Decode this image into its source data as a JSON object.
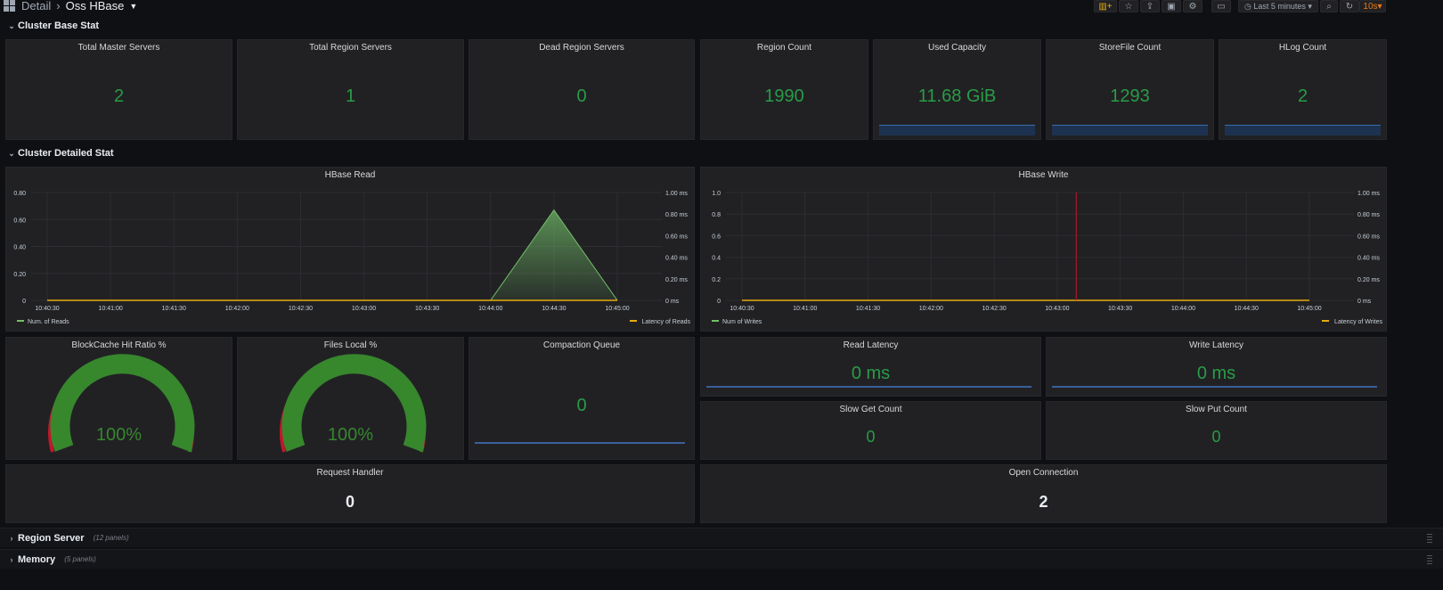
{
  "breadcrumb": {
    "parent": "Detail",
    "current": "Oss HBase"
  },
  "toolbar": {
    "time_range": "Last 5 minutes",
    "refresh": "10s"
  },
  "rows": {
    "base": "Cluster Base Stat",
    "detailed": "Cluster Detailed Stat",
    "region_server": "Region Server",
    "region_server_count": "(12 panels)",
    "memory": "Memory",
    "memory_count": "(5 panels)"
  },
  "stats": {
    "total_master": {
      "title": "Total Master Servers",
      "value": "2"
    },
    "total_region": {
      "title": "Total Region Servers",
      "value": "1"
    },
    "dead_region": {
      "title": "Dead Region Servers",
      "value": "0"
    },
    "region_count": {
      "title": "Region Count",
      "value": "1990"
    },
    "used_capacity": {
      "title": "Used Capacity",
      "value": "11.68 GiB"
    },
    "storefile": {
      "title": "StoreFile Count",
      "value": "1293"
    },
    "hlog": {
      "title": "HLog Count",
      "value": "2"
    },
    "blockcache": {
      "title": "BlockCache Hit Ratio %",
      "value": "100%",
      "level": 1.0
    },
    "files_local": {
      "title": "Files Local %",
      "value": "100%",
      "level": 1.0
    },
    "compaction": {
      "title": "Compaction Queue",
      "value": "0"
    },
    "read_latency": {
      "title": "Read Latency",
      "value": "0 ms"
    },
    "write_latency": {
      "title": "Write Latency",
      "value": "0 ms"
    },
    "slow_get": {
      "title": "Slow Get Count",
      "value": "0"
    },
    "slow_put": {
      "title": "Slow Put Count",
      "value": "0"
    },
    "request_handler": {
      "title": "Request Handler",
      "value": "0"
    },
    "open_connection": {
      "title": "Open Connection",
      "value": "2"
    }
  },
  "colors": {
    "green": "#299c46",
    "gauge_green": "#37872d",
    "gauge_red": "#c4162a",
    "gauge_yellow": "#e0b400",
    "blue": "#3a6ea8",
    "yellow": "#e5ac0e"
  },
  "chart_data": [
    {
      "type": "line",
      "title": "HBase Read",
      "x": [
        "10:40:30",
        "10:41:00",
        "10:41:30",
        "10:42:00",
        "10:42:30",
        "10:43:00",
        "10:43:30",
        "10:44:00",
        "10:44:30",
        "10:45:00"
      ],
      "ylim": [
        0,
        0.8
      ],
      "yticks": [
        "0.80",
        "0.60",
        "0.40",
        "0.20",
        "0"
      ],
      "y2ticks": [
        "1.00 ms",
        "0.80 ms",
        "0.60 ms",
        "0.40 ms",
        "0.20 ms",
        "0 ms"
      ],
      "series": [
        {
          "name": "Num. of Reads",
          "values": [
            0,
            0,
            0,
            0,
            0,
            0,
            0,
            0,
            0.67,
            0
          ]
        },
        {
          "name": "Latency of Reads",
          "values": [
            0,
            0,
            0,
            0,
            0,
            0,
            0,
            0,
            0,
            0
          ]
        }
      ],
      "legend": "bottom"
    },
    {
      "type": "line",
      "title": "HBase Write",
      "x": [
        "10:40:30",
        "10:41:00",
        "10:41:30",
        "10:42:00",
        "10:42:30",
        "10:43:00",
        "10:43:30",
        "10:44:00",
        "10:44:30",
        "10:45:00"
      ],
      "ylim": [
        0,
        1.0
      ],
      "yticks": [
        "1.0",
        "0.8",
        "0.6",
        "0.4",
        "0.2",
        "0"
      ],
      "y2ticks": [
        "1.00 ms",
        "0.80 ms",
        "0.60 ms",
        "0.40 ms",
        "0.20 ms",
        "0 ms"
      ],
      "series": [
        {
          "name": "Num of Writes",
          "values": [
            0,
            0,
            0,
            0,
            0,
            0,
            0,
            0,
            0,
            0
          ]
        },
        {
          "name": "Latency of Writes",
          "values": [
            0,
            0,
            0,
            0,
            0,
            0,
            0,
            0,
            0,
            0
          ]
        }
      ],
      "legend": "bottom"
    }
  ]
}
